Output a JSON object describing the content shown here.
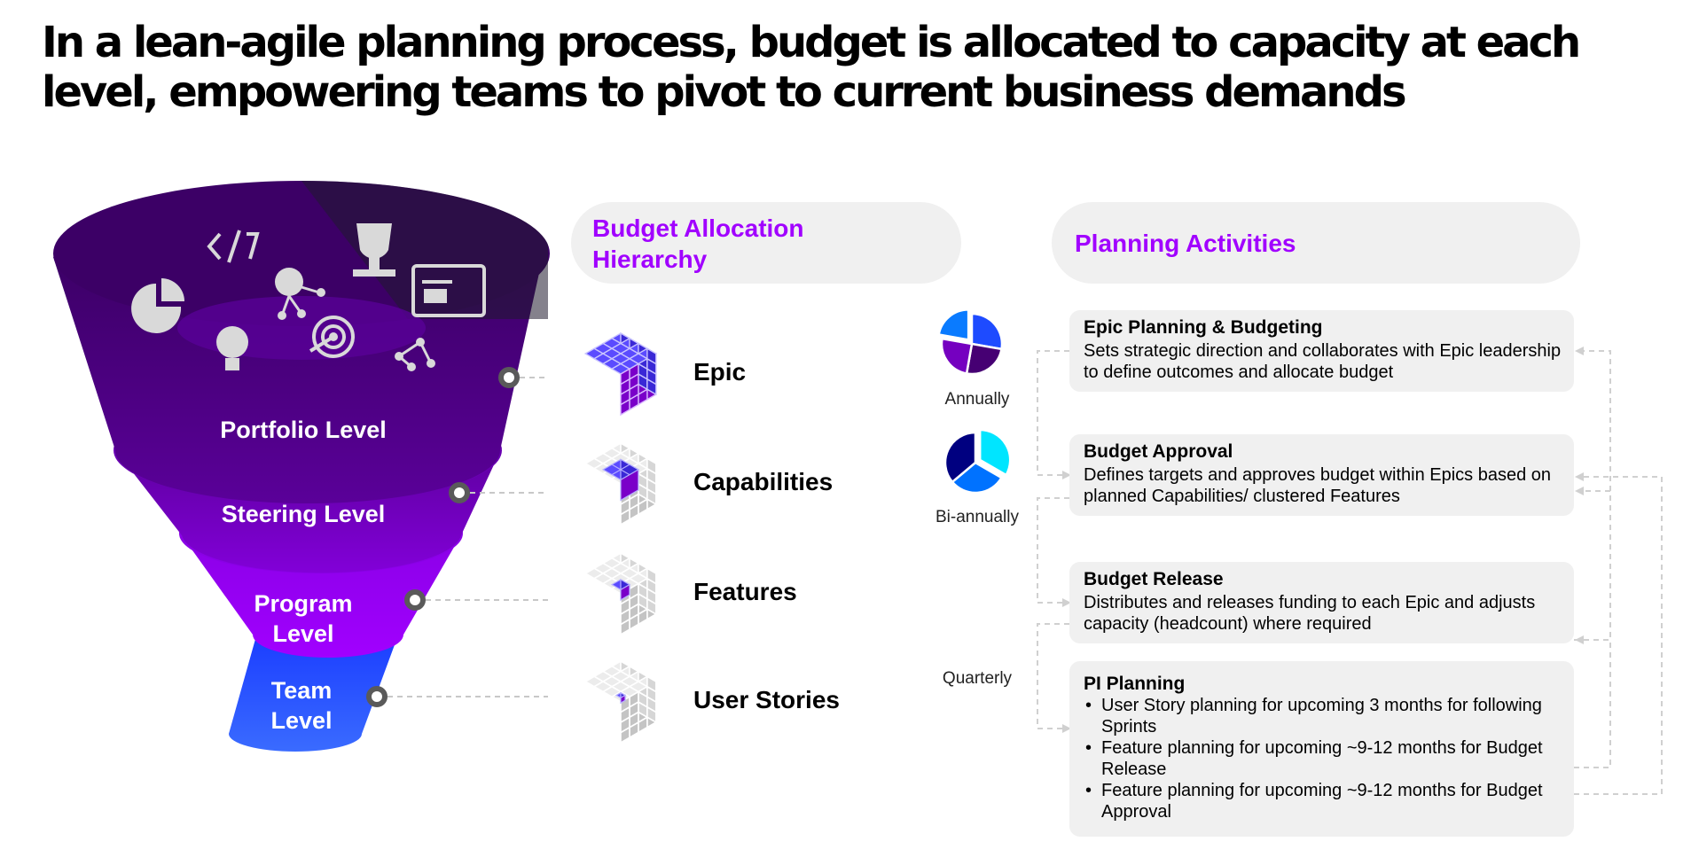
{
  "title": "In a lean-agile planning process, budget is allocated to capacity at each level, empowering teams to pivot to current business demands",
  "funnel": {
    "levels": [
      {
        "label": "Portfolio Level",
        "color": "#460073"
      },
      {
        "label": "Steering Level",
        "color": "#7500c0"
      },
      {
        "label": "Program Level",
        "color": "#a100ff"
      },
      {
        "label": "Team Level",
        "color": "#1e4bff"
      }
    ],
    "icons": [
      "code-icon",
      "pie-chart-icon",
      "dollar-network-icon",
      "trophy-icon",
      "presentation-icon",
      "lightbulb-gear-icon",
      "target-icon",
      "network-icon"
    ]
  },
  "hierarchy": {
    "heading": "Budget Allocation Hierarchy",
    "items": [
      {
        "label": "Epic",
        "icon": "cube-full-icon"
      },
      {
        "label": "Capabilities",
        "icon": "cube-quarter-icon"
      },
      {
        "label": "Features",
        "icon": "cube-single-icon"
      },
      {
        "label": "User Stories",
        "icon": "cube-tiny-icon"
      }
    ]
  },
  "planning": {
    "heading": "Planning Activities",
    "frequencies": [
      {
        "label": "Annually",
        "colors": [
          "#1e4bff",
          "#460073",
          "#7500c0",
          "#0a7bff"
        ]
      },
      {
        "label": "Bi-annually",
        "colors": [
          "#00e5ff",
          "#0072ff",
          "#000080"
        ]
      },
      {
        "label": "Quarterly",
        "colors": [
          "#8c8c8c",
          "#3a3a3a",
          "#5a5a5a",
          "#eeeeee"
        ]
      }
    ],
    "cards": [
      {
        "title": "Epic Planning & Budgeting",
        "body": "Sets strategic direction and collaborates with Epic leadership to define outcomes and allocate budget"
      },
      {
        "title": "Budget Approval",
        "body": "Defines targets and approves budget within Epics based on planned Capabilities/ clustered Features"
      },
      {
        "title": "Budget Release",
        "body": "Distributes and releases funding to each Epic and adjusts capacity (headcount) where required"
      },
      {
        "title": "PI Planning",
        "bullets": [
          "User Story planning for upcoming 3 months for following Sprints",
          "Feature planning for upcoming ~9-12 months for Budget Release",
          "Feature planning for upcoming ~9-12 months for Budget Approval"
        ]
      }
    ]
  },
  "colors": {
    "accent": "#a100ff",
    "card_bg": "#f0f0f0",
    "connector": "#c8c8c8",
    "cube_grey": "#d9d9d9"
  }
}
